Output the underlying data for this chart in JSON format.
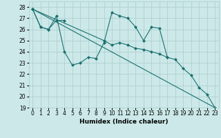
{
  "xlabel": "Humidex (Indice chaleur)",
  "xlim": [
    -0.5,
    23.5
  ],
  "ylim": [
    19,
    28.5
  ],
  "yticks": [
    19,
    20,
    21,
    22,
    23,
    24,
    25,
    26,
    27,
    28
  ],
  "xticks": [
    0,
    1,
    2,
    3,
    4,
    5,
    6,
    7,
    8,
    9,
    10,
    11,
    12,
    13,
    14,
    15,
    16,
    17,
    18,
    19,
    20,
    21,
    22,
    23
  ],
  "bg_color": "#cce8e8",
  "grid_color": "#aacccc",
  "line_color": "#1a7070",
  "line1_x": [
    0,
    1,
    2,
    3,
    4,
    5,
    6,
    7,
    8,
    9,
    10,
    11,
    12,
    13,
    14,
    15,
    16,
    17
  ],
  "line1_y": [
    27.8,
    26.2,
    26.0,
    27.2,
    24.0,
    22.8,
    23.0,
    23.5,
    23.4,
    24.8,
    27.5,
    27.2,
    27.0,
    26.2,
    25.0,
    26.2,
    26.1,
    23.5
  ],
  "line2_x": [
    0,
    1,
    2,
    3,
    4
  ],
  "line2_y": [
    27.8,
    26.2,
    26.0,
    26.8,
    26.8
  ],
  "line3_x": [
    0,
    9,
    10,
    11,
    12,
    13,
    14,
    15,
    16,
    17,
    18,
    19,
    20,
    21,
    22,
    23
  ],
  "line3_y": [
    27.8,
    25.0,
    24.6,
    24.8,
    24.6,
    24.3,
    24.2,
    24.0,
    23.8,
    23.5,
    23.3,
    22.5,
    21.9,
    20.8,
    20.2,
    19.0
  ],
  "line4_x": [
    0,
    23
  ],
  "line4_y": [
    27.8,
    19.0
  ]
}
